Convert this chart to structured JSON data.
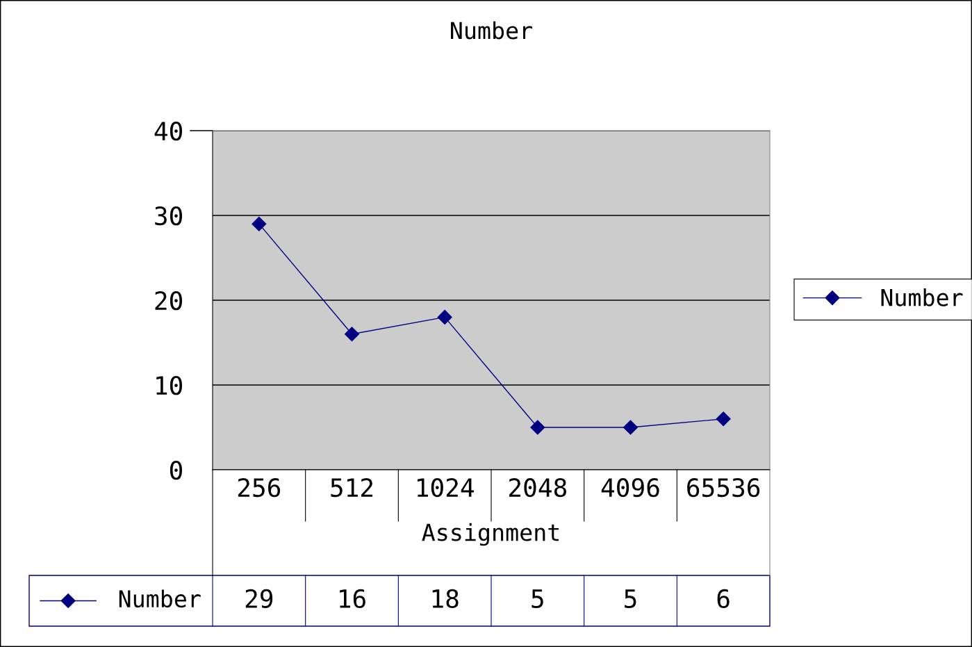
{
  "chart_data": {
    "type": "line",
    "title": "Number",
    "xlabel": "Assignment",
    "categories": [
      "256",
      "512",
      "1024",
      "2048",
      "4096",
      "65536"
    ],
    "series": [
      {
        "name": "Number",
        "color": "#000080",
        "values": [
          29,
          16,
          18,
          5,
          5,
          6
        ]
      }
    ],
    "ylim": [
      0,
      40
    ],
    "yticks": [
      0,
      10,
      20,
      30,
      40
    ],
    "grid": "y",
    "legend": "right",
    "marker": "diamond",
    "line_style": "solid",
    "data_labels": true
  }
}
